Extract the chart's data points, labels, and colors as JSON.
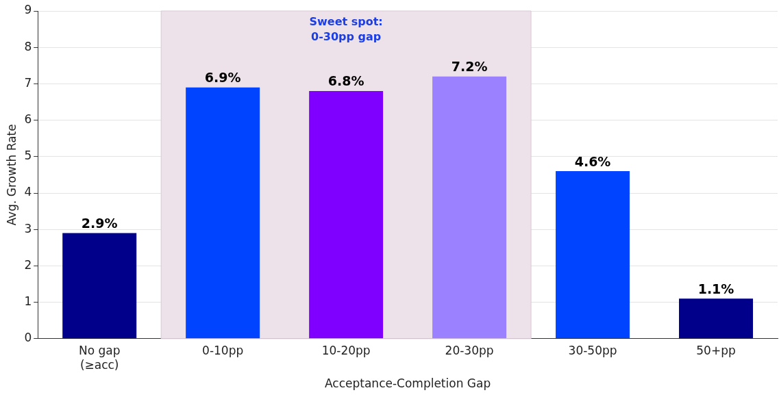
{
  "chart_data": {
    "type": "bar",
    "xlabel": "Acceptance-Completion Gap",
    "ylabel": "Avg. Growth Rate",
    "categories": [
      "No gap\n(≥acc)",
      "0-10pp",
      "10-20pp",
      "20-30pp",
      "30-50pp",
      "50+pp"
    ],
    "values": [
      2.9,
      6.9,
      6.8,
      7.2,
      4.6,
      1.1
    ],
    "colors": [
      "#00008b",
      "#0044ff",
      "#7f00ff",
      "#9b80ff",
      "#0044ff",
      "#00008b"
    ],
    "value_labels": [
      "2.9%",
      "6.9%",
      "6.8%",
      "7.2%",
      "4.6%",
      "1.1%"
    ],
    "bands": [
      {
        "axis": "x",
        "from": "0-10pp",
        "to": "20-30pp",
        "label": "Sweet spot:\n0-30pp gap",
        "color": "#eee2ea"
      }
    ],
    "ylim": [
      0,
      9
    ],
    "yticks": [
      0,
      1,
      2,
      3,
      4,
      5,
      6,
      7,
      8,
      9
    ],
    "grid": "y",
    "legend": false
  }
}
